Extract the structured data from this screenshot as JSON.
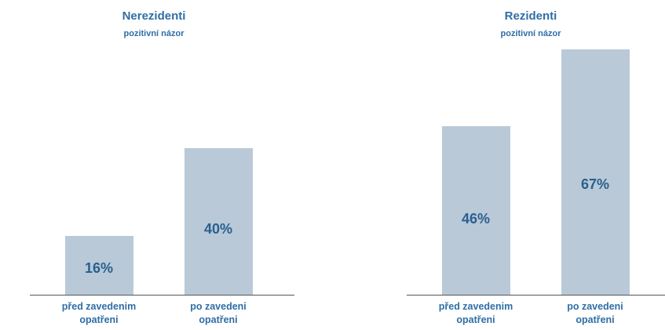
{
  "chart_data": [
    {
      "type": "bar",
      "title": "Nerezidenti",
      "subtitle": "pozitivní názor",
      "categories": [
        "před zavedenim opatřeni",
        "po zavedeni opatřeni"
      ],
      "values": [
        16,
        40
      ],
      "value_labels": [
        "16%",
        "40%"
      ],
      "color": "#b9c9d7"
    },
    {
      "type": "bar",
      "title": "Rezidenti",
      "subtitle": "pozitivní názor",
      "categories": [
        "před zavedenim opatřeni",
        "po zavedeni opatřeni"
      ],
      "values": [
        46,
        67
      ],
      "value_labels": [
        "46%",
        "67%"
      ],
      "color": "#b9c9d7"
    }
  ]
}
